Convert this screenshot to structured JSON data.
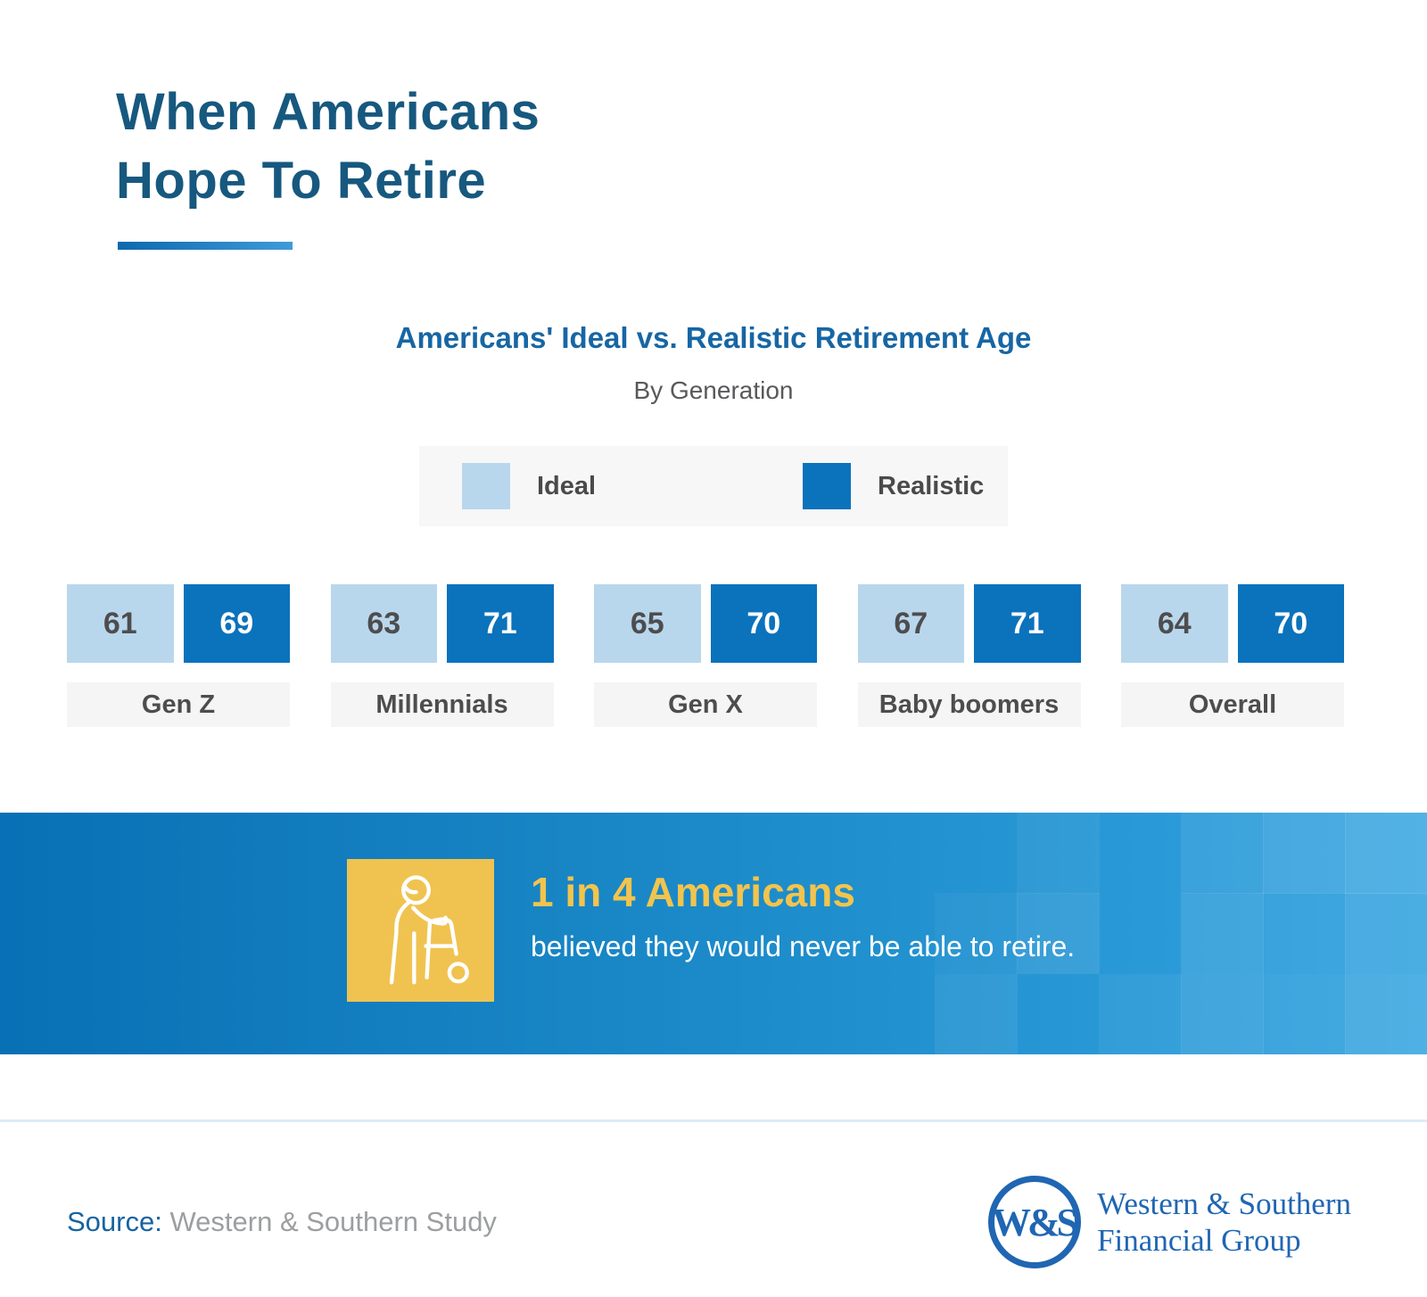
{
  "header": {
    "title_line1": "When Americans",
    "title_line2": "Hope To Retire"
  },
  "chart": {
    "title": "Americans' Ideal vs. Realistic Retirement Age",
    "subtitle": "By Generation",
    "legend": [
      {
        "label": "Ideal",
        "color": "#B9D7EC"
      },
      {
        "label": "Realistic",
        "color": "#0B72BC"
      }
    ]
  },
  "chart_data": {
    "type": "bar",
    "title": "Americans' Ideal vs. Realistic Retirement Age",
    "subtitle": "By Generation",
    "categories": [
      "Gen Z",
      "Millennials",
      "Gen X",
      "Baby boomers",
      "Overall"
    ],
    "series": [
      {
        "name": "Ideal",
        "color": "#B9D7EC",
        "values": [
          61,
          63,
          65,
          67,
          64
        ]
      },
      {
        "name": "Realistic",
        "color": "#0B72BC",
        "values": [
          69,
          71,
          70,
          71,
          70
        ]
      }
    ],
    "value_labels_shown": true,
    "legend_position": "top",
    "axes_shown": false
  },
  "banner": {
    "headline": "1 in 4 Americans",
    "subtext": "believed they would never be able to retire.",
    "icon": "elderly-person-with-walker-icon",
    "headline_color": "#F2C44D",
    "icon_box_color": "#F0C350",
    "gradient_left": "#0870B5",
    "gradient_right": "#33A3E0"
  },
  "footer": {
    "source_label": "Source:",
    "source_text": "Western & Southern Study",
    "logo_monogram": "W&S",
    "logo_line1": "Western & Southern",
    "logo_line2": "Financial Group",
    "logo_color": "#2066B2"
  },
  "colors": {
    "title_blue": "#17587F",
    "chart_title_blue": "#1766A4",
    "subtitle_gray": "#58595B",
    "label_bg_gray": "#F5F5F6",
    "legend_bg_gray": "#F7F7F8",
    "bar_text_dark": "#4D4D4F",
    "divider_blue": "#DCEBF8"
  }
}
